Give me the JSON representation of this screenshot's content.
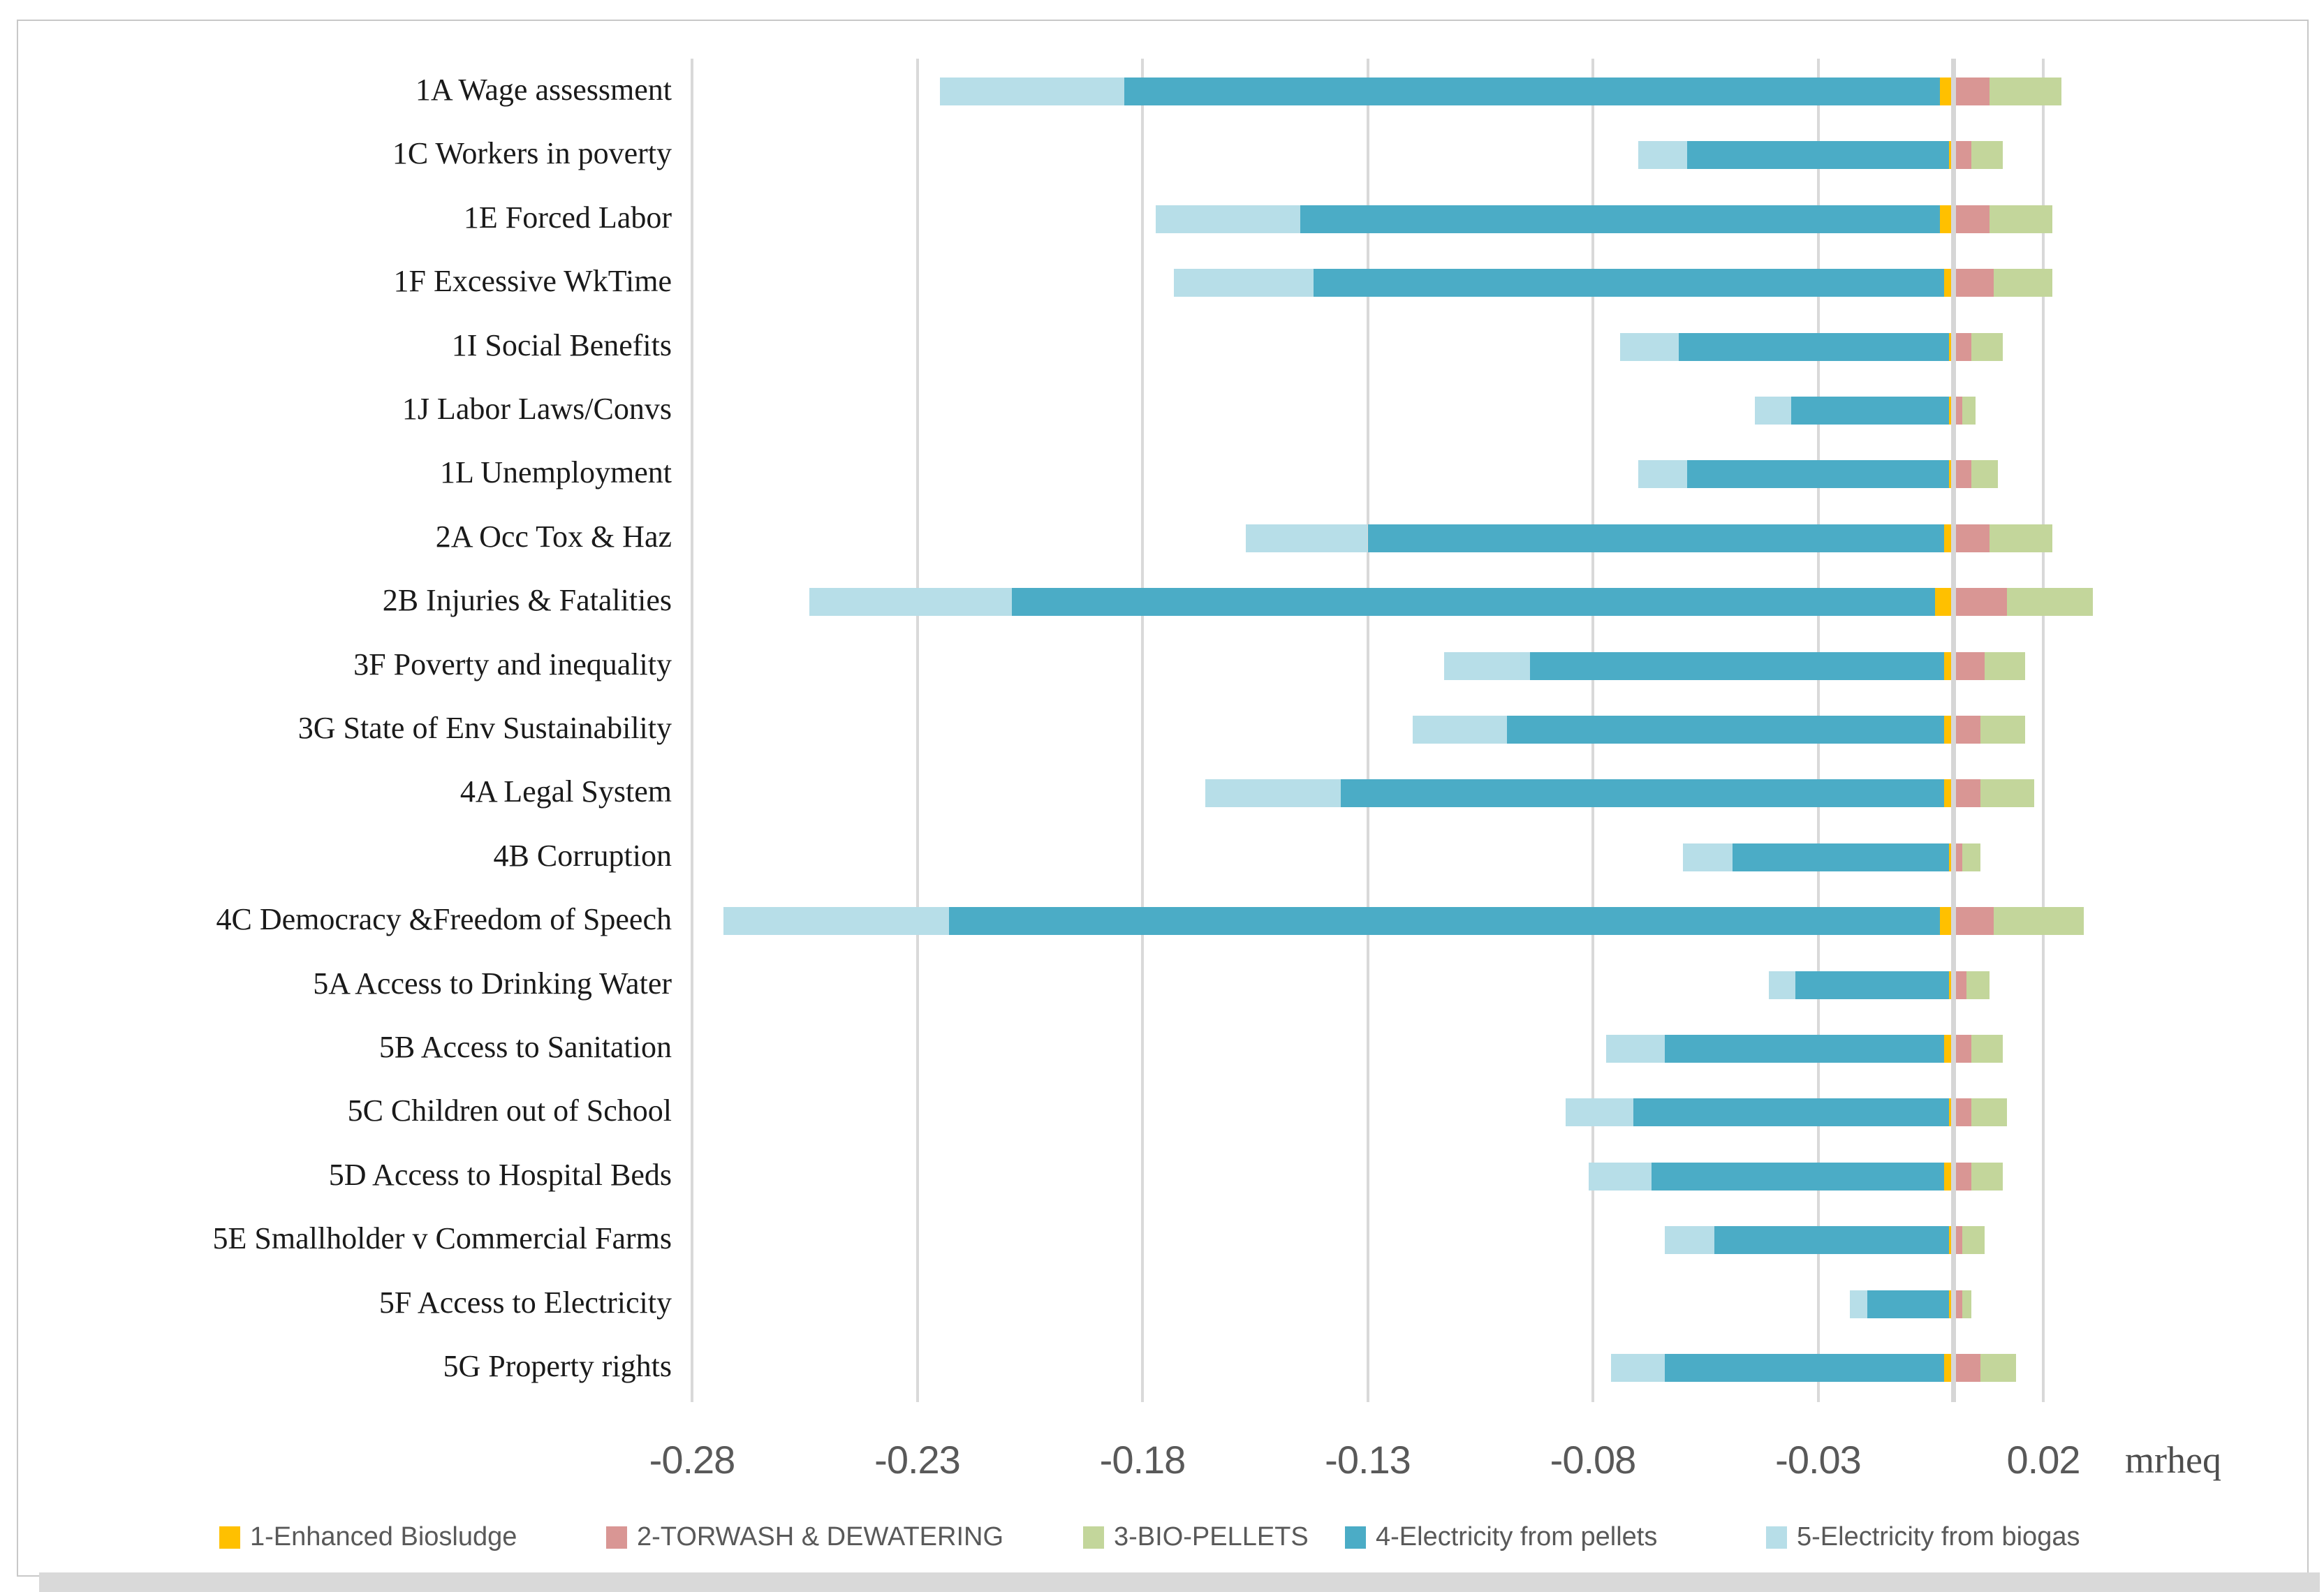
{
  "chart_data": {
    "type": "bar",
    "orientation": "horizontal",
    "stacked": true,
    "grid": true,
    "legend_position": "bottom",
    "xlabel_unit": "mrheq",
    "xlim": [
      -0.285,
      0.036
    ],
    "x_ticks": [
      {
        "value": -0.28,
        "label": "-0.28"
      },
      {
        "value": -0.23,
        "label": "-0.23"
      },
      {
        "value": -0.18,
        "label": "-0.18"
      },
      {
        "value": -0.13,
        "label": "-0.13"
      },
      {
        "value": -0.08,
        "label": "-0.08"
      },
      {
        "value": -0.03,
        "label": "-0.03"
      },
      {
        "value": 0.02,
        "label": "0.02"
      }
    ],
    "categories": [
      "1A Wage assessment",
      "1C Workers in poverty",
      "1E Forced Labor",
      "1F Excessive WkTime",
      "1I Social Benefits",
      "1J Labor Laws/Convs",
      "1L Unemployment",
      "2A Occ Tox & Haz",
      "2B Injuries & Fatalities",
      "3F Poverty and inequality",
      "3G State of Env Sustainability",
      "4A Legal System",
      "4B Corruption",
      "4C Democracy &Freedom of Speech",
      "5A Access to Drinking Water",
      "5B Access to Sanitation",
      "5C Children out of School",
      "5D Access to Hospital Beds",
      "5E Smallholder v Commercial Farms",
      "5F Access to Electricity",
      "5G Property rights"
    ],
    "series": [
      {
        "name": "1-Enhanced Biosludge",
        "color": "#FFC000",
        "values": [
          -0.003,
          -0.001,
          -0.003,
          -0.002,
          -0.001,
          -0.001,
          -0.001,
          -0.002,
          -0.004,
          -0.002,
          -0.002,
          -0.002,
          -0.001,
          -0.003,
          -0.001,
          -0.002,
          -0.001,
          -0.002,
          -0.001,
          -0.001,
          -0.002
        ]
      },
      {
        "name": "2-TORWASH & DEWATERING",
        "color": "#D99694",
        "values": [
          0.008,
          0.004,
          0.008,
          0.009,
          0.004,
          0.002,
          0.004,
          0.008,
          0.012,
          0.007,
          0.006,
          0.006,
          0.002,
          0.009,
          0.003,
          0.004,
          0.004,
          0.004,
          0.002,
          0.002,
          0.006
        ]
      },
      {
        "name": "3-BIO-PELLETS",
        "color": "#C3D69B",
        "values": [
          0.016,
          0.007,
          0.014,
          0.013,
          0.007,
          0.003,
          0.006,
          0.014,
          0.019,
          0.009,
          0.01,
          0.012,
          0.004,
          0.02,
          0.005,
          0.007,
          0.008,
          0.007,
          0.005,
          0.002,
          0.008
        ]
      },
      {
        "name": "4-Electricity from pellets",
        "color": "#4BACC6",
        "values": [
          -0.181,
          -0.058,
          -0.142,
          -0.14,
          -0.06,
          -0.035,
          -0.058,
          -0.128,
          -0.205,
          -0.092,
          -0.097,
          -0.134,
          -0.048,
          -0.22,
          -0.034,
          -0.062,
          -0.07,
          -0.065,
          -0.052,
          -0.018,
          -0.062
        ]
      },
      {
        "name": "5-Electricity from biogas",
        "color": "#B7DEE8",
        "values": [
          -0.041,
          -0.011,
          -0.032,
          -0.031,
          -0.013,
          -0.008,
          -0.011,
          -0.027,
          -0.045,
          -0.019,
          -0.021,
          -0.03,
          -0.011,
          -0.05,
          -0.006,
          -0.013,
          -0.015,
          -0.014,
          -0.011,
          -0.004,
          -0.012
        ]
      }
    ]
  }
}
